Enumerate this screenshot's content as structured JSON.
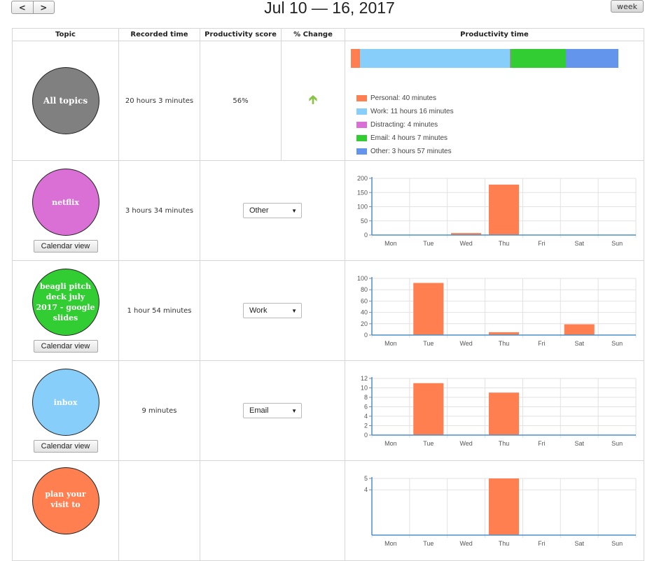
{
  "header": {
    "prev_icon": "<",
    "next_icon": ">",
    "title": "Jul 10 — 16, 2017",
    "week_label": "week"
  },
  "columns": [
    "Topic",
    "Recorded time",
    "Productivity score",
    "% Change",
    "Productivity time"
  ],
  "summary": {
    "topic": "All topics",
    "color": "#808080",
    "recorded": "20 hours 3 minutes",
    "score": "56%",
    "change_icon": "up-arrow-icon",
    "breakdown": [
      {
        "label": "Personal: 40 minutes",
        "color": "#ff7f50",
        "minutes": 40
      },
      {
        "label": "Work: 11 hours 16 minutes",
        "color": "#87cefa",
        "minutes": 676
      },
      {
        "label": "Distracting: 4 minutes",
        "color": "#da70d6",
        "minutes": 4
      },
      {
        "label": "Email: 4 hours 7 minutes",
        "color": "#32cd32",
        "minutes": 247
      },
      {
        "label": "Other: 3 hours 57 minutes",
        "color": "#6495ed",
        "minutes": 237
      }
    ]
  },
  "rows": [
    {
      "topic": "netflix",
      "color": "#da70d6",
      "recorded": "3 hours 34 minutes",
      "category": "Other",
      "calendar_label": "Calendar view"
    },
    {
      "topic": "beagli pitch deck july 2017 - google slides",
      "color": "#32cd32",
      "recorded": "1 hour 54 minutes",
      "category": "Work",
      "calendar_label": "Calendar view"
    },
    {
      "topic": "inbox",
      "color": "#87cefa",
      "recorded": "9 minutes",
      "category": "Email",
      "calendar_label": "Calendar view"
    },
    {
      "topic": "plan your visit to",
      "color": "#ff7f50",
      "recorded": "",
      "category": "",
      "calendar_label": ""
    }
  ],
  "chart_data": [
    {
      "type": "bar",
      "categories": [
        "Mon",
        "Tue",
        "Wed",
        "Thu",
        "Fri",
        "Sat",
        "Sun"
      ],
      "values": [
        0,
        0,
        7,
        178,
        0,
        0,
        0
      ],
      "ylim": [
        0,
        200
      ],
      "yticks": [
        0,
        50,
        100,
        150,
        200
      ],
      "color": "#ff7f50"
    },
    {
      "type": "bar",
      "categories": [
        "Mon",
        "Tue",
        "Wed",
        "Thu",
        "Fri",
        "Sat",
        "Sun"
      ],
      "values": [
        0,
        92,
        0,
        5,
        0,
        19,
        0
      ],
      "ylim": [
        0,
        100
      ],
      "yticks": [
        0,
        20,
        40,
        60,
        80,
        100
      ],
      "color": "#ff7f50"
    },
    {
      "type": "bar",
      "categories": [
        "Mon",
        "Tue",
        "Wed",
        "Thu",
        "Fri",
        "Sat",
        "Sun"
      ],
      "values": [
        0,
        11,
        0,
        9,
        0,
        0,
        0
      ],
      "ylim": [
        0,
        12
      ],
      "yticks": [
        0,
        2,
        4,
        6,
        8,
        10,
        12
      ],
      "color": "#ff7f50"
    },
    {
      "type": "bar",
      "categories": [
        "Mon",
        "Tue",
        "Wed",
        "Thu",
        "Fri",
        "Sat",
        "Sun"
      ],
      "values": [
        0,
        0,
        0,
        5,
        0,
        0,
        0
      ],
      "ylim": [
        0,
        5
      ],
      "yticks": [
        4,
        5
      ],
      "color": "#ff7f50"
    }
  ]
}
